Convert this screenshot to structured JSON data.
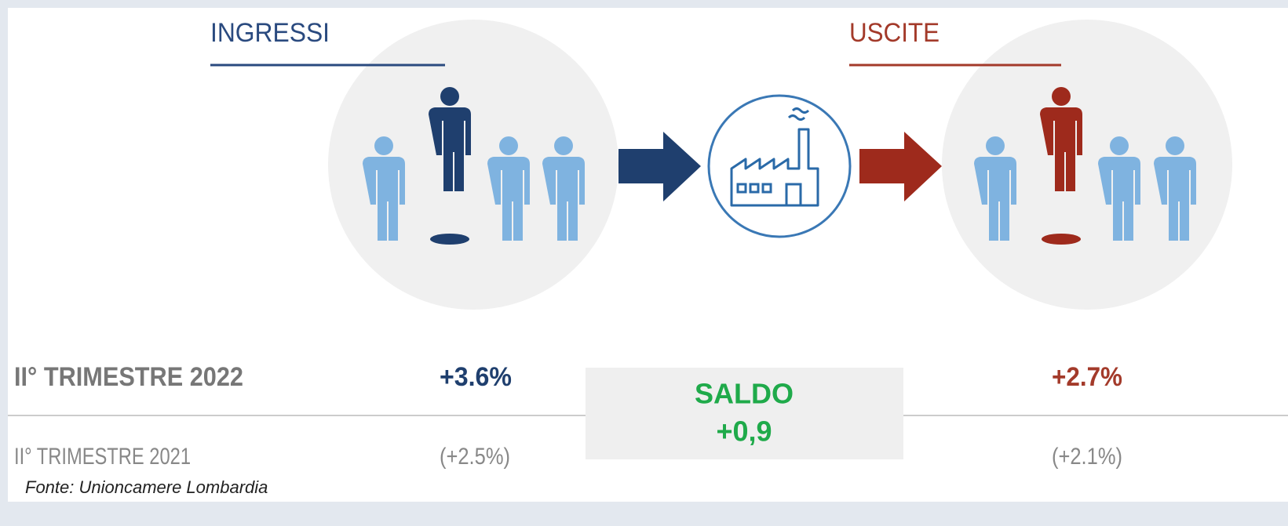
{
  "headings": {
    "ingressi": "INGRESSI",
    "uscite": "USCITE"
  },
  "rows": [
    {
      "label": "II° TRIMESTRE 2022",
      "ingressi": "+3.6%",
      "uscite": "+2.7%"
    },
    {
      "label": "II° TRIMESTRE 2021",
      "ingressi": "(+2.5%)",
      "uscite": "(+2.1%)"
    }
  ],
  "saldo": {
    "label": "SALDO",
    "value": "+0,9"
  },
  "source": "Fonte: Unioncamere Lombardia"
}
